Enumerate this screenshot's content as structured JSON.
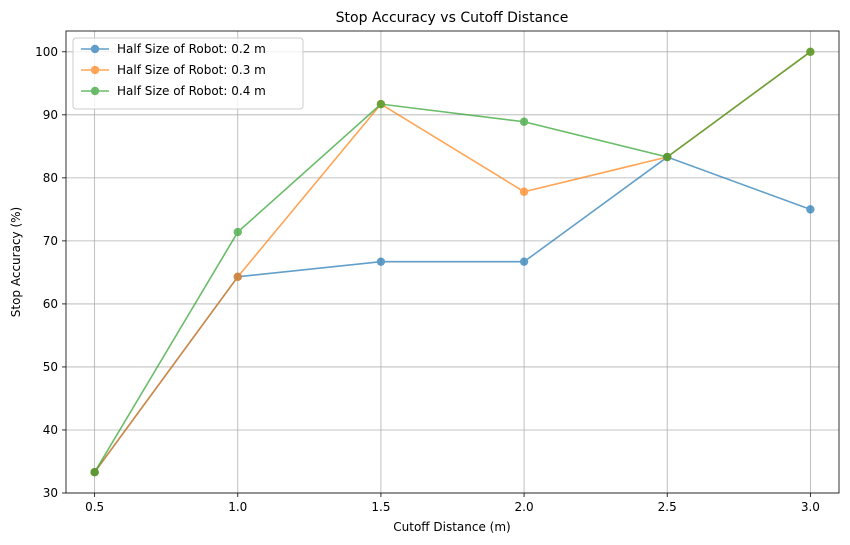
{
  "chart_data": {
    "type": "line",
    "title": "Stop Accuracy vs Cutoff Distance",
    "xlabel": "Cutoff Distance (m)",
    "ylabel": "Stop Accuracy (%)",
    "x": [
      0.5,
      1.0,
      1.5,
      2.0,
      2.5,
      3.0
    ],
    "xticks": [
      "0.5",
      "1.0",
      "1.5",
      "2.0",
      "2.5",
      "3.0"
    ],
    "yticks": [
      "30",
      "40",
      "50",
      "60",
      "70",
      "80",
      "90",
      "100"
    ],
    "xlim": [
      0.4,
      3.1
    ],
    "ylim": [
      30,
      103.3
    ],
    "grid": true,
    "legend_position": "upper-left",
    "series": [
      {
        "name": "Half Size of Robot: 0.2 m",
        "color": "#1f77b4",
        "values": [
          33.3,
          64.3,
          66.7,
          66.7,
          83.3,
          75.0
        ]
      },
      {
        "name": "Half Size of Robot: 0.3 m",
        "color": "#ff7f0e",
        "values": [
          33.3,
          64.3,
          91.7,
          77.8,
          83.3,
          100.0
        ]
      },
      {
        "name": "Half Size of Robot: 0.4 m",
        "color": "#2ca02c",
        "values": [
          33.3,
          71.4,
          91.7,
          88.9,
          83.3,
          100.0
        ]
      }
    ]
  }
}
